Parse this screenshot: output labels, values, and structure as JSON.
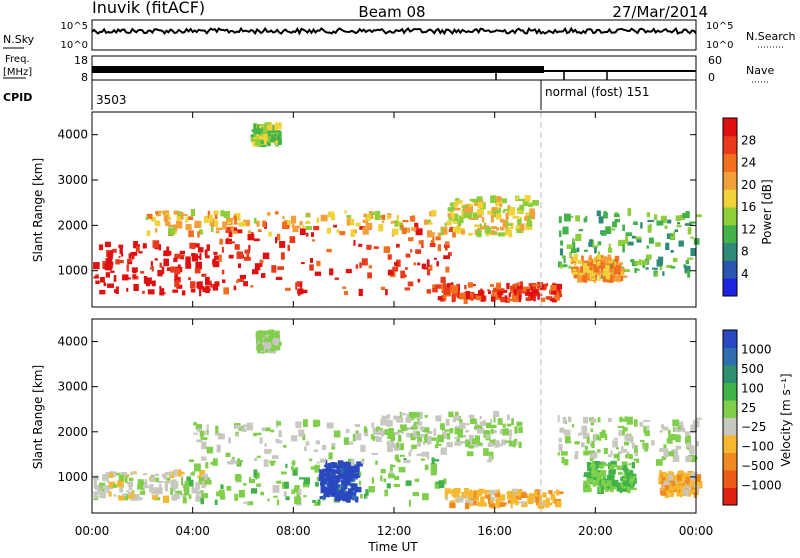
{
  "header": {
    "station": "Inuvik (fitACF)",
    "beam": "Beam 08",
    "date": "27/Mar/2014"
  },
  "strips": {
    "nsky_label": "N.Sky",
    "nsky_ticks": [
      "10^5",
      "10^0"
    ],
    "nsearch_label": "N.Search",
    "nsearch_ticks": [
      "10^5",
      "10^0"
    ],
    "freq_label": "Freq.",
    "freq_unit": "[MHz]",
    "freq_ticks": [
      "18",
      "8"
    ],
    "nave_label": "Nave",
    "nave_ticks": [
      "60",
      "0"
    ],
    "cpid_label": "CPID",
    "cpid_value": "3503",
    "mode_text": "normal (fost) 151"
  },
  "axes": {
    "xlabel": "Time UT",
    "ylabel": "Slant Range [km]",
    "xticks": [
      "00:00",
      "04:00",
      "08:00",
      "12:00",
      "16:00",
      "20:00",
      "00:00"
    ],
    "yticks": [
      "1000",
      "2000",
      "3000",
      "4000"
    ]
  },
  "colorbars": {
    "power": {
      "label": "Power [dB]",
      "ticks": [
        "4",
        "8",
        "12",
        "16",
        "20",
        "24",
        "28"
      ],
      "colors": [
        "#1f24e0",
        "#2a56b0",
        "#2f8a7a",
        "#44b24a",
        "#8ccf3a",
        "#f0d23a",
        "#f2a03a",
        "#f07020",
        "#ea3a1c",
        "#e01010"
      ]
    },
    "velocity": {
      "label": "Velocity [m s⁻¹]",
      "ticks": [
        "1000",
        "500",
        "100",
        "25",
        "−25",
        "−100",
        "−500",
        "−1000"
      ],
      "colors": [
        "#2a48c0",
        "#2f6fb0",
        "#2e9070",
        "#3fb24a",
        "#7fcf4a",
        "#c8c8c0",
        "#f5b830",
        "#f08a20",
        "#ec5a18",
        "#e02010"
      ]
    }
  },
  "chart_data": [
    {
      "type": "heatmap",
      "title": "Power [dB]",
      "xlabel": "Time UT",
      "ylabel": "Slant Range [km]",
      "xlim": [
        0,
        24
      ],
      "ylim": [
        200,
        4500
      ],
      "colorbar_range": [
        0,
        30
      ],
      "blobs": [
        {
          "t0": 0.0,
          "t1": 5.0,
          "r0": 500,
          "r1": 1600,
          "value": 29
        },
        {
          "t0": 5.0,
          "t1": 14.5,
          "r0": 500,
          "r1": 2000,
          "value": 26
        },
        {
          "t0": 2.0,
          "t1": 14.0,
          "r0": 1800,
          "r1": 2300,
          "value": 18
        },
        {
          "t0": 13.5,
          "t1": 18.5,
          "r0": 350,
          "r1": 700,
          "value": 25
        },
        {
          "t0": 14.0,
          "t1": 17.5,
          "r0": 1800,
          "r1": 2600,
          "value": 16
        },
        {
          "t0": 18.5,
          "t1": 24.0,
          "r0": 900,
          "r1": 2300,
          "value": 11
        },
        {
          "t0": 19.0,
          "t1": 21.0,
          "r0": 800,
          "r1": 1300,
          "value": 20
        },
        {
          "t0": 6.3,
          "t1": 7.3,
          "r0": 3800,
          "r1": 4200,
          "value": 13
        }
      ]
    },
    {
      "type": "heatmap",
      "title": "Velocity [m s⁻¹]",
      "xlabel": "Time UT",
      "ylabel": "Slant Range [km]",
      "xlim": [
        0,
        24
      ],
      "ylim": [
        200,
        4500
      ],
      "colorbar_range": [
        -1000,
        1000
      ],
      "blobs": [
        {
          "t0": 0.0,
          "t1": 4.5,
          "r0": 500,
          "r1": 1100,
          "value": -80
        },
        {
          "t0": 3.5,
          "t1": 14.0,
          "r0": 400,
          "r1": 1400,
          "value": 120
        },
        {
          "t0": 9.0,
          "t1": 10.5,
          "r0": 500,
          "r1": 1300,
          "value": 900
        },
        {
          "t0": 4.0,
          "t1": 16.0,
          "r0": 1300,
          "r1": 2200,
          "value": 0
        },
        {
          "t0": 11.0,
          "t1": 17.0,
          "r0": 1700,
          "r1": 2400,
          "value": -10
        },
        {
          "t0": 14.0,
          "t1": 18.5,
          "r0": 350,
          "r1": 700,
          "value": -300
        },
        {
          "t0": 18.5,
          "t1": 24.0,
          "r0": 1300,
          "r1": 2300,
          "value": 0
        },
        {
          "t0": 19.5,
          "t1": 21.5,
          "r0": 700,
          "r1": 1300,
          "value": 200
        },
        {
          "t0": 22.5,
          "t1": 24.0,
          "r0": 600,
          "r1": 1100,
          "value": -300
        },
        {
          "t0": 6.5,
          "t1": 7.3,
          "r0": 3800,
          "r1": 4200,
          "value": 0
        }
      ]
    }
  ]
}
